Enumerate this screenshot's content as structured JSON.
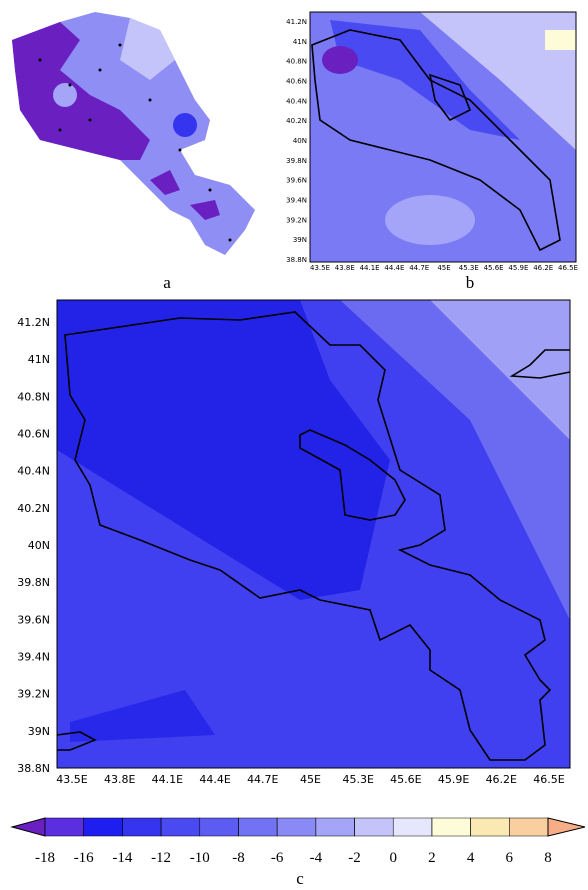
{
  "panels": {
    "a": {
      "label": "a"
    },
    "b": {
      "label": "b",
      "lat_labels": [
        "41.2N",
        "41N",
        "40.8N",
        "40.6N",
        "40.4N",
        "40.2N",
        "40N",
        "39.8N",
        "39.6N",
        "39.4N",
        "39.2N",
        "39N",
        "38.8N"
      ],
      "lon_labels": [
        "43.5E",
        "43.8E",
        "44.1E",
        "44.4E",
        "44.7E",
        "45E",
        "45.3E",
        "45.6E",
        "45.9E",
        "46.2E",
        "46.5E"
      ]
    },
    "c": {
      "label": "c",
      "lat_labels": [
        "41.2N",
        "41N",
        "40.8N",
        "40.6N",
        "40.4N",
        "40.2N",
        "40N",
        "39.8N",
        "39.6N",
        "39.4N",
        "39.2N",
        "39N",
        "38.8N"
      ],
      "lon_labels": [
        "43.5E",
        "43.8E",
        "44.1E",
        "44.4E",
        "44.7E",
        "45E",
        "45.3E",
        "45.6E",
        "45.9E",
        "46.2E",
        "46.5E"
      ]
    }
  },
  "colorbar": {
    "ticks": [
      -18,
      -16,
      -14,
      -12,
      -10,
      -8,
      -6,
      -4,
      -2,
      0,
      2,
      4,
      6,
      8
    ],
    "colors": [
      "#6a1fc0",
      "#5b2ee0",
      "#1e1ef0",
      "#3535f0",
      "#4a4af2",
      "#5c5cf2",
      "#7272f4",
      "#8a8af6",
      "#a4a4f8",
      "#c4c4fa",
      "#e6e6fc",
      "#fdfbd8",
      "#fbe9b4",
      "#f9cfa0",
      "#f7ad86"
    ]
  }
}
